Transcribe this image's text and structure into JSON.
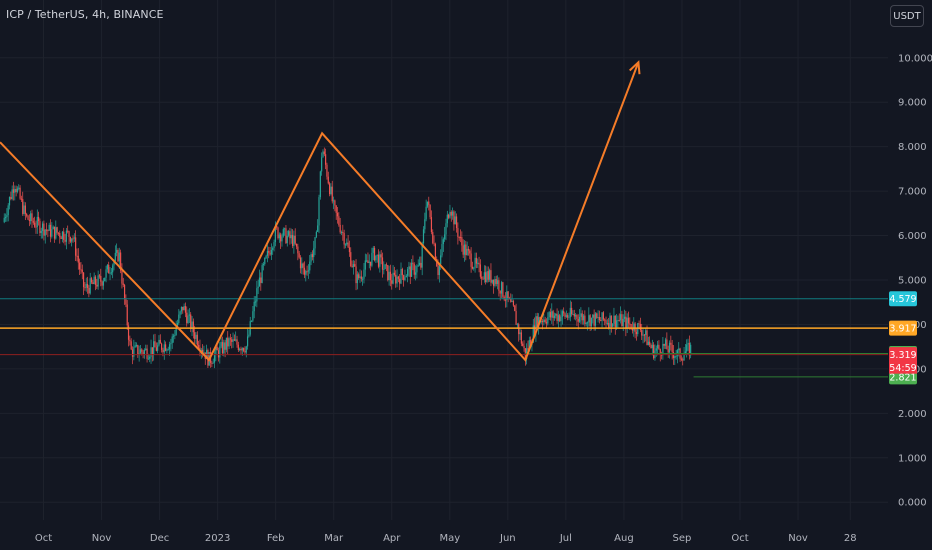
{
  "header": {
    "title": "ICP / TetherUS, 4h, BINANCE",
    "currency": "USDT"
  },
  "colors": {
    "background": "#131722",
    "grid": "#1e222d",
    "axis_text": "#b2b5be",
    "candle_up": "#26a69a",
    "candle_down": "#ef5350",
    "pattern_line": "#f57c28",
    "level_cyan": "#0f7b7f",
    "level_orange": "#ffa726",
    "level_red": "#b71c1c",
    "level_green": "#2e7d32"
  },
  "chart_data": {
    "type": "line",
    "title": "ICP / TetherUS, 4h, BINANCE",
    "xlabel": "",
    "ylabel": "",
    "x_ticks": [
      {
        "label": "Oct",
        "month": 0.5
      },
      {
        "label": "Nov",
        "month": 1.5
      },
      {
        "label": "Dec",
        "month": 2.5
      },
      {
        "label": "2023",
        "month": 3.5
      },
      {
        "label": "Feb",
        "month": 4.5
      },
      {
        "label": "Mar",
        "month": 5.5
      },
      {
        "label": "Apr",
        "month": 6.5
      },
      {
        "label": "May",
        "month": 7.5
      },
      {
        "label": "Jun",
        "month": 8.5
      },
      {
        "label": "Jul",
        "month": 9.5
      },
      {
        "label": "Aug",
        "month": 10.5
      },
      {
        "label": "Sep",
        "month": 11.5
      },
      {
        "label": "Oct",
        "month": 12.5
      },
      {
        "label": "Nov",
        "month": 13.5
      },
      {
        "label": "28",
        "month": 14.4
      }
    ],
    "x_range": [
      -0.25,
      15.05
    ],
    "y_ticks": [
      "0.000",
      "1.000",
      "2.000",
      "3.000",
      "4.000",
      "5.000",
      "6.000",
      "7.000",
      "8.000",
      "9.000",
      "10.000"
    ],
    "ylim": [
      -0.4,
      11.3
    ],
    "series": [
      {
        "values": [
          {
            "month": -0.2,
            "price": 6.3
          },
          {
            "month": 0.0,
            "price": 7.2
          },
          {
            "month": 0.2,
            "price": 6.4
          },
          {
            "month": 0.6,
            "price": 6.1
          },
          {
            "month": 1.0,
            "price": 6.0
          },
          {
            "month": 1.2,
            "price": 4.8
          },
          {
            "month": 1.5,
            "price": 5.0
          },
          {
            "month": 1.8,
            "price": 5.6
          },
          {
            "month": 2.0,
            "price": 3.4
          },
          {
            "month": 2.3,
            "price": 3.4
          },
          {
            "month": 2.7,
            "price": 3.6
          },
          {
            "month": 2.9,
            "price": 4.4
          },
          {
            "month": 3.1,
            "price": 3.8
          },
          {
            "month": 3.35,
            "price": 3.2
          },
          {
            "month": 3.7,
            "price": 3.6
          },
          {
            "month": 4.0,
            "price": 3.5
          },
          {
            "month": 4.2,
            "price": 4.9
          },
          {
            "month": 4.5,
            "price": 6.1
          },
          {
            "month": 4.8,
            "price": 5.9
          },
          {
            "month": 5.0,
            "price": 5.1
          },
          {
            "month": 5.2,
            "price": 5.9
          },
          {
            "month": 5.3,
            "price": 8.0
          },
          {
            "month": 5.5,
            "price": 6.6
          },
          {
            "month": 5.7,
            "price": 5.9
          },
          {
            "month": 5.9,
            "price": 5.0
          },
          {
            "month": 6.2,
            "price": 5.6
          },
          {
            "month": 6.5,
            "price": 5.0
          },
          {
            "month": 6.8,
            "price": 5.2
          },
          {
            "month": 7.0,
            "price": 5.3
          },
          {
            "month": 7.1,
            "price": 6.9
          },
          {
            "month": 7.3,
            "price": 5.2
          },
          {
            "month": 7.5,
            "price": 6.7
          },
          {
            "month": 7.7,
            "price": 5.8
          },
          {
            "month": 8.0,
            "price": 5.2
          },
          {
            "month": 8.3,
            "price": 5.0
          },
          {
            "month": 8.6,
            "price": 4.3
          },
          {
            "month": 8.8,
            "price": 3.3
          },
          {
            "month": 9.0,
            "price": 4.1
          },
          {
            "month": 9.3,
            "price": 4.2
          },
          {
            "month": 9.7,
            "price": 4.2
          },
          {
            "month": 10.0,
            "price": 4.1
          },
          {
            "month": 10.4,
            "price": 4.1
          },
          {
            "month": 10.8,
            "price": 3.9
          },
          {
            "month": 11.0,
            "price": 3.4
          },
          {
            "month": 11.2,
            "price": 3.5
          },
          {
            "month": 11.45,
            "price": 3.3
          },
          {
            "month": 11.65,
            "price": 3.45
          }
        ]
      }
    ],
    "annotations": {
      "zigzag": [
        {
          "month": -0.25,
          "price": 8.1
        },
        {
          "month": 3.35,
          "price": 3.2
        },
        {
          "month": 5.3,
          "price": 8.3
        },
        {
          "month": 8.8,
          "price": 3.2
        },
        {
          "month": 10.75,
          "price": 9.9
        }
      ],
      "levels": [
        {
          "price": 4.579,
          "label": "4.579",
          "color": "#0f7b7f",
          "label_bg": "#26c6da",
          "full_width": true
        },
        {
          "price": 3.917,
          "label": "3.917",
          "color": "#ffa726",
          "label_bg": "#ffa726",
          "full_width": true
        },
        {
          "price": 3.347,
          "label": "3.347",
          "color": "#2e7d32",
          "label_bg": "#4caf50",
          "full_width": false,
          "from_month": 8.8
        },
        {
          "price": 3.32,
          "label": "3.319",
          "color": "#8e1f1f",
          "label_bg": "#f23645",
          "full_width": true
        },
        {
          "price": 2.82,
          "label": "2.821",
          "color": "#2e7d32",
          "label_bg": "#4caf50",
          "full_width": false,
          "from_month": 11.7
        }
      ],
      "countdown": "54:59"
    }
  }
}
